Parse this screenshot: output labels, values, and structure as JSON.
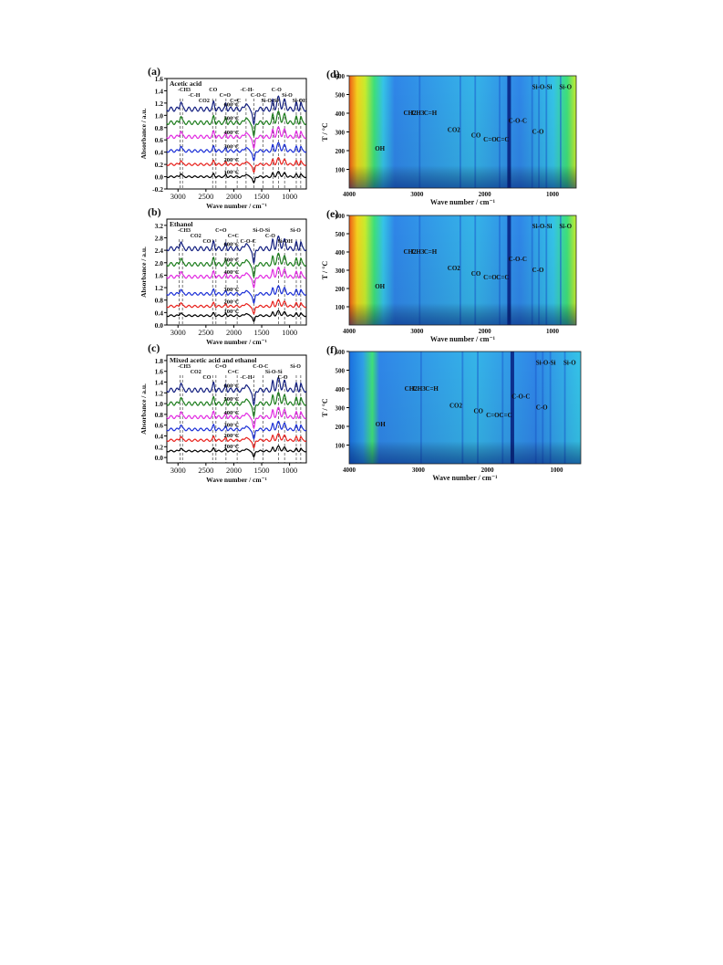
{
  "chart_data": [
    {
      "panel": "(a)",
      "type": "line",
      "title": "Acetic acid",
      "xlabel": "Wave number / cm⁻¹",
      "ylabel": "Absorbance / a.u.",
      "xlim": [
        3200,
        700
      ],
      "ylim": [
        -0.2,
        1.6
      ],
      "xticks": [
        3000,
        2500,
        2000,
        1500,
        1000
      ],
      "yticks": [
        -0.2,
        0.0,
        0.2,
        0.4,
        0.6,
        0.8,
        1.0,
        1.2,
        1.4,
        1.6
      ],
      "series": [
        {
          "name": "100°C",
          "color": "#000000",
          "baseline": 0.0
        },
        {
          "name": "200°C",
          "color": "#e8211c",
          "baseline": 0.2
        },
        {
          "name": "300°C",
          "color": "#1b2fd6",
          "baseline": 0.42
        },
        {
          "name": "400°C",
          "color": "#e22be2",
          "baseline": 0.65
        },
        {
          "name": "500°C",
          "color": "#1d7d1d",
          "baseline": 0.88
        },
        {
          "name": "600°C",
          "color": "#131f80",
          "baseline": 1.1
        }
      ],
      "annotations": [
        "-CH3",
        "-C-H",
        "CO2",
        "CO",
        "C=O",
        "C=C",
        "-C-H-",
        "C-O-C",
        "Si-O-Si",
        "C-O",
        "Si-O",
        "Si-OH"
      ],
      "dashed_lines_x": [
        2960,
        2920,
        2380,
        2320,
        2140,
        1940,
        1780,
        1640,
        1480,
        1300,
        1200,
        1090,
        880,
        800
      ],
      "grid": false
    },
    {
      "panel": "(b)",
      "type": "line",
      "title": "Ethanol",
      "xlabel": "Wave number / cm⁻¹",
      "ylabel": "Absorbance / a.u.",
      "xlim": [
        3200,
        700
      ],
      "ylim": [
        0.0,
        3.4
      ],
      "xticks": [
        3000,
        2500,
        2000,
        1500,
        1000
      ],
      "yticks": [
        0.0,
        0.4,
        0.8,
        1.2,
        1.6,
        2.0,
        2.4,
        2.8,
        3.2
      ],
      "series": [
        {
          "name": "100°C",
          "color": "#000000",
          "baseline": 0.3
        },
        {
          "name": "200°C",
          "color": "#e8211c",
          "baseline": 0.6
        },
        {
          "name": "300°C",
          "color": "#1b2fd6",
          "baseline": 1.0
        },
        {
          "name": "400°C",
          "color": "#e22be2",
          "baseline": 1.55
        },
        {
          "name": "500°C",
          "color": "#1d7d1d",
          "baseline": 1.95
        },
        {
          "name": "600°C",
          "color": "#131f80",
          "baseline": 2.45
        }
      ],
      "annotations": [
        "-CH3",
        "CO2",
        "CO",
        "C=O",
        "C=C",
        "C-O-C",
        "Si-O-Si",
        "C-O",
        "Si-OH",
        "Si-O"
      ],
      "dashed_lines_x": [
        2980,
        2920,
        2380,
        2320,
        2140,
        1940,
        1640,
        1200,
        1090,
        880,
        800
      ],
      "grid": false
    },
    {
      "panel": "(c)",
      "type": "line",
      "title": "Mixed  acetic acid and ethanol",
      "xlabel": "Wave number / cm⁻¹",
      "ylabel": "Absorbance / a.u.",
      "xlim": [
        3200,
        700
      ],
      "ylim": [
        -0.1,
        1.9
      ],
      "xticks": [
        3000,
        2500,
        2000,
        1500,
        1000
      ],
      "yticks": [
        0.0,
        0.2,
        0.4,
        0.6,
        0.8,
        1.0,
        1.2,
        1.4,
        1.6,
        1.8
      ],
      "series": [
        {
          "name": "100°C",
          "color": "#000000",
          "baseline": 0.12
        },
        {
          "name": "200°C",
          "color": "#e8211c",
          "baseline": 0.32
        },
        {
          "name": "300°C",
          "color": "#1b2fd6",
          "baseline": 0.52
        },
        {
          "name": "400°C",
          "color": "#e22be2",
          "baseline": 0.75
        },
        {
          "name": "500°C",
          "color": "#1d7d1d",
          "baseline": 1.0
        },
        {
          "name": "600°C",
          "color": "#131f80",
          "baseline": 1.25
        }
      ],
      "annotations": [
        "-CH3",
        "CO2",
        "CO",
        "C=O",
        "C=C",
        "-C-H-",
        "C-O-C",
        "Si-O-Si",
        "C-O",
        "Si-O"
      ],
      "dashed_lines_x": [
        2960,
        2920,
        2380,
        2320,
        2140,
        1940,
        1640,
        1480,
        1200,
        1090,
        880,
        800
      ],
      "grid": false
    },
    {
      "panel": "(d)",
      "type": "heatmap",
      "xlabel": "Wave number / cm⁻¹",
      "ylabel": "T / °C",
      "xlim": [
        4000,
        650
      ],
      "ylim": [
        0,
        600
      ],
      "xticks": [
        4000,
        3000,
        2000,
        1000
      ],
      "yticks": [
        100,
        200,
        300,
        400,
        500,
        600
      ],
      "colormap": [
        "#1a3fbf",
        "#2f86e8",
        "#35c4e8",
        "#3ee07a",
        "#c8ec2e",
        "#f4d21e",
        "#ef5a16"
      ],
      "annotations": [
        "OH",
        "CH2",
        "CH3",
        "C=H",
        "CO2",
        "CO",
        "C=O",
        "C=C",
        "C-O-C",
        "Si-O-Si",
        "C-O",
        "Si-O"
      ]
    },
    {
      "panel": "(e)",
      "type": "heatmap",
      "xlabel": "Wave number / cm⁻¹",
      "ylabel": "T / °C",
      "xlim": [
        4000,
        650
      ],
      "ylim": [
        0,
        600
      ],
      "xticks": [
        4000,
        3000,
        2000,
        1000
      ],
      "yticks": [
        100,
        200,
        300,
        400,
        500,
        600
      ],
      "colormap": [
        "#1a3fbf",
        "#2f86e8",
        "#35c4e8",
        "#3ee07a",
        "#c8ec2e",
        "#f4d21e",
        "#ef5a16"
      ],
      "annotations": [
        "OH",
        "CH2",
        "CH3",
        "C=H",
        "CO2",
        "CO",
        "C=O",
        "C=C",
        "C-O-C",
        "Si-O-Si",
        "C-O",
        "Si-O"
      ]
    },
    {
      "panel": "(f)",
      "type": "heatmap",
      "xlabel": "Wave number / cm⁻¹",
      "ylabel": "T / °C",
      "xlim": [
        4000,
        650
      ],
      "ylim": [
        0,
        600
      ],
      "xticks": [
        4000,
        3000,
        2000,
        1000
      ],
      "yticks": [
        100,
        200,
        300,
        400,
        500,
        600
      ],
      "colormap": [
        "#1a3fbf",
        "#2f86e8",
        "#35c4e8",
        "#3ee07a",
        "#c8ec2e",
        "#f4d21e",
        "#ef5a16"
      ],
      "annotations": [
        "OH",
        "CH2",
        "CH3",
        "C=H",
        "CO2",
        "CO",
        "C=O",
        "C=C",
        "C-O-C",
        "Si-O-Si",
        "C-O",
        "Si-O"
      ]
    }
  ]
}
